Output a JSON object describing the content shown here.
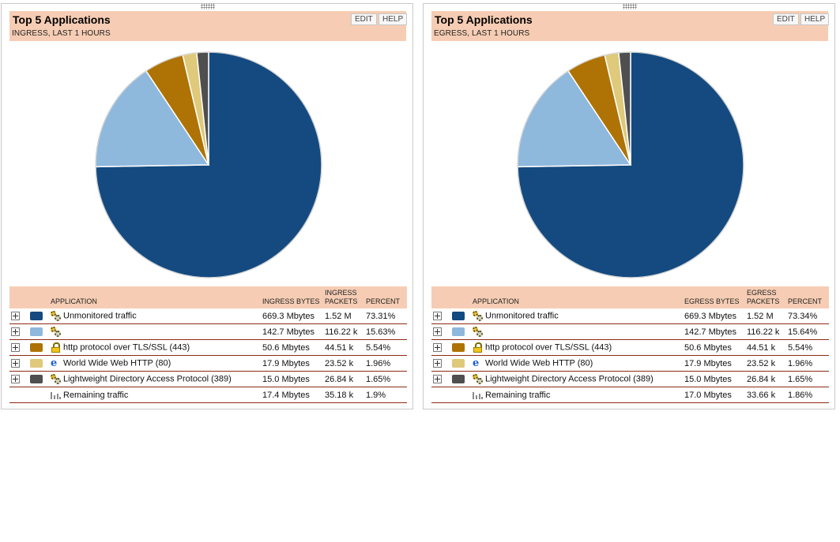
{
  "panels": [
    {
      "title": "Top 5 Applications",
      "subtitle": "INGRESS, LAST 1 HOURS",
      "edit_label": "EDIT",
      "help_label": "HELP",
      "columns": {
        "application": "APPLICATION",
        "bytes": "INGRESS BYTES",
        "packets": "INGRESS PACKETS",
        "percent": "PERCENT"
      },
      "rows": [
        {
          "name": "Unmonitored traffic",
          "bytes": "669.3 Mbytes",
          "packets": "1.52 M",
          "percent": "73.31%",
          "color": "#144a80",
          "icon": "gears-icon"
        },
        {
          "name": "",
          "bytes": "142.7 Mbytes",
          "packets": "116.22 k",
          "percent": "15.63%",
          "color": "#8fb8dd",
          "icon": "gears-icon"
        },
        {
          "name": "http protocol over TLS/SSL (443)",
          "bytes": "50.6 Mbytes",
          "packets": "44.51 k",
          "percent": "5.54%",
          "color": "#ae7304",
          "icon": "lock-icon"
        },
        {
          "name": "World Wide Web HTTP (80)",
          "bytes": "17.9 Mbytes",
          "packets": "23.52 k",
          "percent": "1.96%",
          "color": "#dfc97a",
          "icon": "ie-icon"
        },
        {
          "name": "Lightweight Directory Access Protocol (389)",
          "bytes": "15.0 Mbytes",
          "packets": "26.84 k",
          "percent": "1.65%",
          "color": "#4f4f4f",
          "icon": "gears-icon"
        }
      ],
      "remaining": {
        "name": "Remaining traffic",
        "bytes": "17.4 Mbytes",
        "packets": "35.18 k",
        "percent": "1.9%"
      }
    },
    {
      "title": "Top 5 Applications",
      "subtitle": "EGRESS, LAST 1 HOURS",
      "edit_label": "EDIT",
      "help_label": "HELP",
      "columns": {
        "application": "APPLICATION",
        "bytes": "EGRESS BYTES",
        "packets": "EGRESS PACKETS",
        "percent": "PERCENT"
      },
      "rows": [
        {
          "name": "Unmonitored traffic",
          "bytes": "669.3 Mbytes",
          "packets": "1.52 M",
          "percent": "73.34%",
          "color": "#144a80",
          "icon": "gears-icon"
        },
        {
          "name": "",
          "bytes": "142.7 Mbytes",
          "packets": "116.22 k",
          "percent": "15.64%",
          "color": "#8fb8dd",
          "icon": "gears-icon"
        },
        {
          "name": "http protocol over TLS/SSL (443)",
          "bytes": "50.6 Mbytes",
          "packets": "44.51 k",
          "percent": "5.54%",
          "color": "#ae7304",
          "icon": "lock-icon"
        },
        {
          "name": "World Wide Web HTTP (80)",
          "bytes": "17.9 Mbytes",
          "packets": "23.52 k",
          "percent": "1.96%",
          "color": "#dfc97a",
          "icon": "ie-icon"
        },
        {
          "name": "Lightweight Directory Access Protocol (389)",
          "bytes": "15.0 Mbytes",
          "packets": "26.84 k",
          "percent": "1.65%",
          "color": "#4f4f4f",
          "icon": "gears-icon"
        }
      ],
      "remaining": {
        "name": "Remaining traffic",
        "bytes": "17.0 Mbytes",
        "packets": "33.66 k",
        "percent": "1.86%"
      }
    }
  ],
  "chart_data": [
    {
      "type": "pie",
      "title": "Top 5 Applications — INGRESS, LAST 1 HOURS",
      "categories": [
        "Unmonitored traffic",
        "",
        "http protocol over TLS/SSL (443)",
        "World Wide Web HTTP (80)",
        "Lightweight Directory Access Protocol (389)"
      ],
      "values": [
        73.31,
        15.63,
        5.54,
        1.96,
        1.65
      ],
      "colors": [
        "#144a80",
        "#8fb8dd",
        "#ae7304",
        "#dfc97a",
        "#4f4f4f"
      ]
    },
    {
      "type": "pie",
      "title": "Top 5 Applications — EGRESS, LAST 1 HOURS",
      "categories": [
        "Unmonitored traffic",
        "",
        "http protocol over TLS/SSL (443)",
        "World Wide Web HTTP (80)",
        "Lightweight Directory Access Protocol (389)"
      ],
      "values": [
        73.34,
        15.64,
        5.54,
        1.96,
        1.65
      ],
      "colors": [
        "#144a80",
        "#8fb8dd",
        "#ae7304",
        "#dfc97a",
        "#4f4f4f"
      ]
    }
  ]
}
